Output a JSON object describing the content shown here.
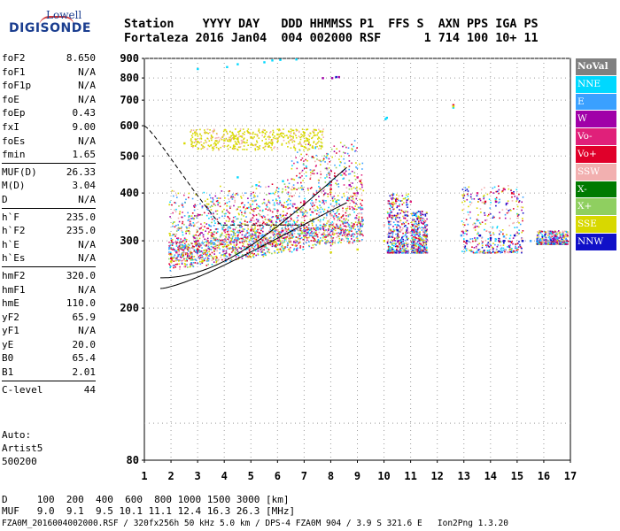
{
  "logo": {
    "line1": "Lowell",
    "line2": "DIGISONDE"
  },
  "header": {
    "line1": "Station    YYYY DAY   DDD HHMMSS P1  FFS S  AXN PPS IGA PS",
    "line2": "Fortaleza 2016 Jan04  004 002000 RSF      1 714 100 10+ 11"
  },
  "params_groups": [
    [
      [
        "foF2",
        "8.650"
      ],
      [
        "foF1",
        "N/A"
      ],
      [
        "foF1p",
        "N/A"
      ],
      [
        "foE",
        "N/A"
      ],
      [
        "foEp",
        "0.43"
      ],
      [
        "fxI",
        "9.00"
      ],
      [
        "foEs",
        "N/A"
      ],
      [
        "fmin",
        "1.65"
      ]
    ],
    [
      [
        "MUF(D)",
        "26.33"
      ],
      [
        "M(D)",
        "3.04"
      ],
      [
        "D",
        "N/A"
      ]
    ],
    [
      [
        "h`F",
        "235.0"
      ],
      [
        "h`F2",
        "235.0"
      ],
      [
        "h`E",
        "N/A"
      ],
      [
        "h`Es",
        "N/A"
      ]
    ],
    [
      [
        "hmF2",
        "320.0"
      ],
      [
        "hmF1",
        "N/A"
      ],
      [
        "hmE",
        "110.0"
      ],
      [
        "yF2",
        "65.9"
      ],
      [
        "yF1",
        "N/A"
      ],
      [
        "yE",
        "20.0"
      ],
      [
        "B0",
        "65.4"
      ],
      [
        "B1",
        "2.01"
      ]
    ],
    [
      [
        "C-level",
        "44"
      ]
    ]
  ],
  "auto": {
    "label": "Auto:",
    "algo": "Artist5",
    "version": "500200"
  },
  "scale": {
    "d_row": "D     100  200  400  600  800 1000 1500 3000 [km]",
    "muf_row": "MUF   9.0  9.1  9.5 10.1 11.1 12.4 16.3 26.3 [MHz]"
  },
  "footer": "FZA0M_2016004002000.RSF / 320fx256h 50 kHz 5.0 km / DPS-4 FZA0M 904 / 3.9 S 321.6 E   Ion2Png 1.3.20",
  "legend": [
    {
      "label": "NoVal",
      "bg": "#808080",
      "fg": "#ffffff",
      "bold": true
    },
    {
      "label": "NNE",
      "bg": "#00d8ff",
      "fg": "#ffffff"
    },
    {
      "label": "E",
      "bg": "#3aa0ff",
      "fg": "#ffffff"
    },
    {
      "label": "W",
      "bg": "#a000a8",
      "fg": "#ffffff"
    },
    {
      "label": "Vo-",
      "bg": "#e0207a",
      "fg": "#ffffff"
    },
    {
      "label": "Vo+",
      "bg": "#e0002a",
      "fg": "#ffffff"
    },
    {
      "label": "SSW",
      "bg": "#f2b0b0",
      "fg": "#ffffff"
    },
    {
      "label": "X-",
      "bg": "#007a00",
      "fg": "#ffffff"
    },
    {
      "label": "X+",
      "bg": "#8fcf60",
      "fg": "#ffffff"
    },
    {
      "label": "SSE",
      "bg": "#d8d800",
      "fg": "#ffffff"
    },
    {
      "label": "NNW",
      "bg": "#1010c8",
      "fg": "#ffffff"
    }
  ],
  "chart_data": {
    "type": "scatter",
    "title": "",
    "xlabel": "",
    "ylabel": "",
    "xlim": [
      1,
      17
    ],
    "ylim": [
      80,
      900
    ],
    "y_scale": "log",
    "x_ticks": [
      1,
      2,
      3,
      4,
      5,
      6,
      7,
      8,
      9,
      10,
      11,
      12,
      13,
      14,
      15,
      16,
      17
    ],
    "y_ticks": [
      80,
      200,
      300,
      400,
      500,
      600,
      700,
      800,
      900
    ],
    "grid": true,
    "legend_position": "right",
    "series": [
      {
        "name": "NNE",
        "color": "#00d8ff",
        "points": [
          [
            3,
            845
          ],
          [
            4.1,
            855
          ],
          [
            4.5,
            870
          ],
          [
            5.5,
            880
          ],
          [
            5.8,
            890
          ],
          [
            6.1,
            893
          ],
          [
            6.7,
            895
          ],
          [
            10.1,
            630
          ],
          [
            10.05,
            625
          ],
          [
            12.6,
            670
          ],
          [
            4.5,
            440
          ],
          [
            5.2,
            420
          ],
          [
            6.2,
            430
          ],
          [
            8.2,
            380
          ]
        ]
      },
      {
        "name": "E",
        "color": "#3aa0ff",
        "points": [
          [
            2.5,
            290
          ],
          [
            3.5,
            300
          ],
          [
            4.5,
            305
          ],
          [
            5.5,
            310
          ],
          [
            6.5,
            318
          ],
          [
            7.5,
            325
          ],
          [
            8.5,
            335
          ],
          [
            9.2,
            340
          ],
          [
            10.5,
            330
          ],
          [
            11.2,
            320
          ],
          [
            12.9,
            310
          ],
          [
            13.5,
            305
          ],
          [
            14.5,
            308
          ],
          [
            15.5,
            300
          ],
          [
            16.5,
            305
          ]
        ]
      },
      {
        "name": "W",
        "color": "#a000a8",
        "points": [
          [
            7.7,
            800
          ],
          [
            8.05,
            800
          ],
          [
            8.3,
            805
          ],
          [
            9,
            400
          ],
          [
            8.7,
            420
          ],
          [
            10.2,
            350
          ],
          [
            14.2,
            380
          ]
        ]
      },
      {
        "name": "Vo-",
        "color": "#e0207a",
        "points": [
          [
            2.2,
            280
          ],
          [
            3,
            300
          ],
          [
            4,
            320
          ],
          [
            5,
            340
          ],
          [
            6,
            360
          ],
          [
            7,
            380
          ],
          [
            8,
            420
          ],
          [
            8.5,
            450
          ],
          [
            9,
            440
          ],
          [
            11,
            380
          ],
          [
            13.5,
            400
          ],
          [
            14.5,
            410
          ]
        ]
      },
      {
        "name": "Vo+",
        "color": "#e0002a",
        "points": [
          [
            2,
            270
          ],
          [
            3,
            285
          ],
          [
            4,
            300
          ],
          [
            5,
            320
          ],
          [
            6,
            345
          ],
          [
            7,
            375
          ],
          [
            8,
            410
          ],
          [
            9.1,
            430
          ],
          [
            12.6,
            680
          ],
          [
            13.8,
            380
          ],
          [
            14.8,
            400
          ]
        ]
      },
      {
        "name": "SSE",
        "color": "#d8d800",
        "points": [
          [
            2.5,
            540
          ],
          [
            3,
            545
          ],
          [
            4,
            550
          ],
          [
            4.5,
            555
          ],
          [
            5,
            560
          ],
          [
            6,
            570
          ],
          [
            7,
            575
          ],
          [
            7.6,
            580
          ],
          [
            2,
            265
          ],
          [
            4,
            275
          ],
          [
            6,
            285
          ],
          [
            8,
            280
          ],
          [
            9,
            285
          ],
          [
            10,
            300
          ],
          [
            12.6,
            675
          ]
        ]
      },
      {
        "name": "NNW",
        "color": "#1010c8",
        "points": [
          [
            8.2,
            805
          ],
          [
            13.1,
            300
          ],
          [
            13.6,
            310
          ],
          [
            14,
            305
          ],
          [
            14.5,
            300
          ],
          [
            14.9,
            310
          ],
          [
            15.2,
            300
          ],
          [
            10.5,
            320
          ]
        ]
      },
      {
        "name": "X+",
        "color": "#8fcf60",
        "points": [
          [
            3.5,
            295
          ],
          [
            5,
            305
          ],
          [
            7,
            315
          ],
          [
            9,
            300
          ],
          [
            10.5,
            305
          ]
        ]
      },
      {
        "name": "SSW",
        "color": "#f2b0b0",
        "points": [
          [
            4,
            300
          ],
          [
            6,
            320
          ],
          [
            8,
            350
          ],
          [
            10,
            330
          ],
          [
            11,
            315
          ]
        ]
      }
    ]
  }
}
